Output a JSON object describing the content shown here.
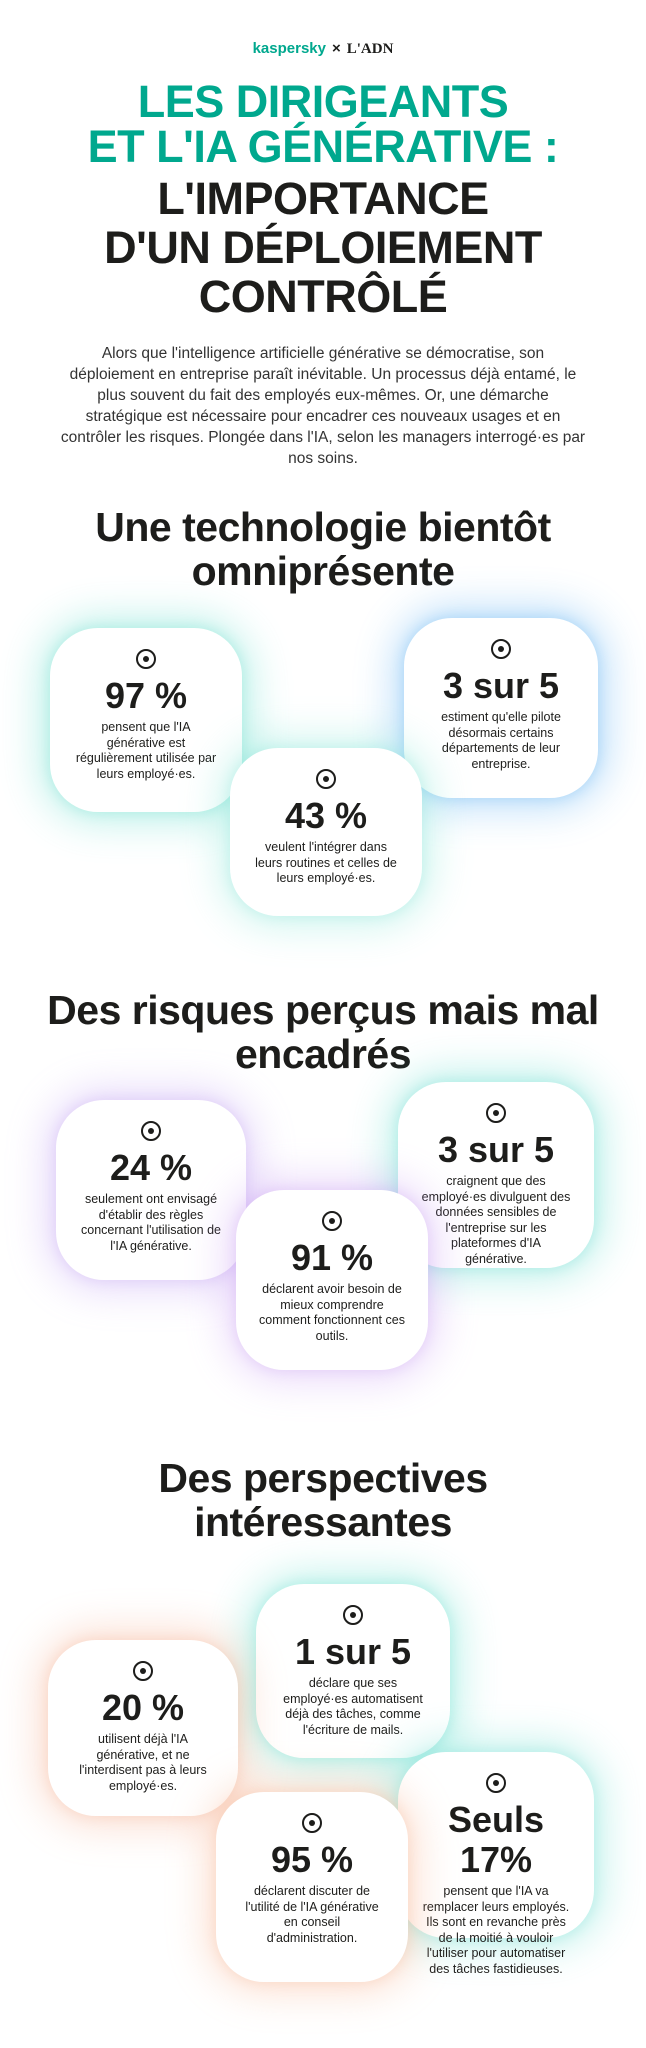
{
  "header": {
    "brand_left": "kaspersky",
    "separator": "×",
    "brand_right": "L'ADN"
  },
  "title": {
    "lines": [
      "LES DIRIGEANTS",
      "ET L'IA GÉNÉRATIVE :",
      "L'IMPORTANCE",
      "D'UN DÉPLOIEMENT",
      "CONTRÔLÉ"
    ]
  },
  "intro": "Alors que l'intelligence artificielle générative se démocratise, son déploiement en entreprise paraît inévitable. Un processus déjà entamé, le plus souvent du fait des employés eux-mêmes. Or, une démarche stratégique est nécessaire pour encadrer ces nouveaux usages et en contrôler les risques. Plongée dans l'IA, selon les managers interrogé·es par nos soins.",
  "sections": [
    {
      "heading": "Une technologie bientôt omniprésente",
      "stats": [
        {
          "value": "97 %",
          "text": "pensent que l'IA générative est régulièrement utilisée par leurs employé·es."
        },
        {
          "value": "3 sur 5",
          "text": "estiment qu'elle pilote désormais certains départements de leur entreprise."
        },
        {
          "value": "43 %",
          "text": "veulent l'intégrer dans leurs routines et celles de leurs employé·es."
        }
      ]
    },
    {
      "heading": "Des risques perçus mais mal encadrés",
      "stats": [
        {
          "value": "24 %",
          "text": "seulement ont envisagé d'établir des règles concernant l'utilisation de l'IA générative."
        },
        {
          "value": "3 sur 5",
          "text": "craignent que des employé·es divulguent des données sensibles de l'entreprise sur les plateformes d'IA générative."
        },
        {
          "value": "91 %",
          "text": "déclarent avoir besoin de mieux comprendre comment fonctionnent ces outils."
        }
      ]
    },
    {
      "heading": "Des perspectives intéressantes",
      "stats": [
        {
          "value": "1 sur 5",
          "text": "déclare que ses employé·es automatisent déjà des tâches, comme l'écriture de mails."
        },
        {
          "value": "20 %",
          "text": "utilisent déjà l'IA générative, et ne l'interdisent pas à leurs employé·es."
        },
        {
          "value": "Seuls 17%",
          "text": "pensent que l'IA va remplacer leurs employés. Ils sont en revanche près de la moitié à vouloir l'utiliser pour automatiser des tâches fastidieuses."
        },
        {
          "value": "95 %",
          "text": "déclarent discuter de l'utilité de l'IA générative en conseil d'administration."
        }
      ]
    }
  ]
}
